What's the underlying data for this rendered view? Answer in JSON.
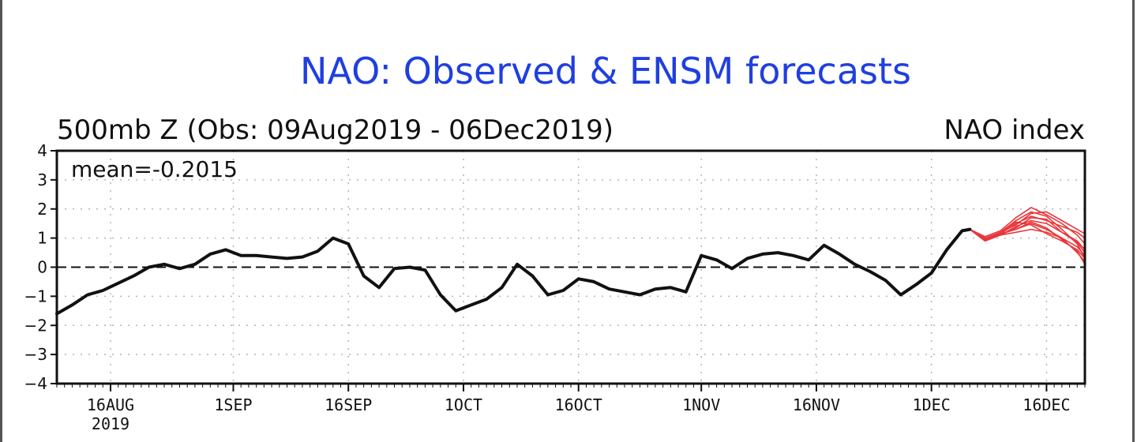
{
  "chart_data": {
    "type": "line",
    "title": "NAO: Observed & ENSM forecasts",
    "subtitle_left": "500mb Z (Obs: 09Aug2019 - 06Dec2019)",
    "subtitle_right": "NAO index",
    "annotation": "mean=-0.2015",
    "ylim": [
      -4,
      4
    ],
    "yticks": [
      "4",
      "3",
      "2",
      "1",
      "0",
      "−1",
      "−2",
      "−3",
      "−4"
    ],
    "xlim": [
      "2019-08-09",
      "2019-12-21"
    ],
    "xticks": [
      {
        "label": "16AUG",
        "sub": "2019",
        "date": "2019-08-16"
      },
      {
        "label": "1SEP",
        "sub": "",
        "date": "2019-09-01"
      },
      {
        "label": "16SEP",
        "sub": "",
        "date": "2019-09-16"
      },
      {
        "label": "1OCT",
        "sub": "",
        "date": "2019-10-01"
      },
      {
        "label": "16OCT",
        "sub": "",
        "date": "2019-10-16"
      },
      {
        "label": "1NOV",
        "sub": "",
        "date": "2019-11-01"
      },
      {
        "label": "16NOV",
        "sub": "",
        "date": "2019-11-16"
      },
      {
        "label": "1DEC",
        "sub": "",
        "date": "2019-12-01"
      },
      {
        "label": "16DEC",
        "sub": "",
        "date": "2019-12-16"
      }
    ],
    "grid": true,
    "zero_line": "dashed",
    "colors": {
      "observed": "#111111",
      "forecast": "#e8383c",
      "title": "#1f3fe0"
    },
    "observed": {
      "x": [
        "2019-08-09",
        "2019-08-11",
        "2019-08-13",
        "2019-08-15",
        "2019-08-17",
        "2019-08-19",
        "2019-08-21",
        "2019-08-23",
        "2019-08-25",
        "2019-08-27",
        "2019-08-29",
        "2019-08-31",
        "2019-09-02",
        "2019-09-04",
        "2019-09-06",
        "2019-09-08",
        "2019-09-10",
        "2019-09-12",
        "2019-09-14",
        "2019-09-16",
        "2019-09-18",
        "2019-09-20",
        "2019-09-22",
        "2019-09-24",
        "2019-09-26",
        "2019-09-28",
        "2019-09-30",
        "2019-10-02",
        "2019-10-04",
        "2019-10-06",
        "2019-10-08",
        "2019-10-10",
        "2019-10-12",
        "2019-10-14",
        "2019-10-16",
        "2019-10-18",
        "2019-10-20",
        "2019-10-22",
        "2019-10-24",
        "2019-10-26",
        "2019-10-28",
        "2019-10-30",
        "2019-11-01",
        "2019-11-03",
        "2019-11-05",
        "2019-11-07",
        "2019-11-09",
        "2019-11-11",
        "2019-11-13",
        "2019-11-15",
        "2019-11-17",
        "2019-11-19",
        "2019-11-21",
        "2019-11-23",
        "2019-11-25",
        "2019-11-27",
        "2019-11-29",
        "2019-12-01",
        "2019-12-03",
        "2019-12-05",
        "2019-12-06"
      ],
      "y": [
        -1.6,
        -1.3,
        -0.95,
        -0.8,
        -0.55,
        -0.3,
        0.0,
        0.1,
        -0.05,
        0.1,
        0.45,
        0.6,
        0.4,
        0.4,
        0.35,
        0.3,
        0.35,
        0.55,
        1.0,
        0.8,
        -0.3,
        -0.7,
        -0.05,
        0.0,
        -0.1,
        -0.95,
        -1.5,
        -1.3,
        -1.1,
        -0.7,
        0.1,
        -0.3,
        -0.95,
        -0.8,
        -0.4,
        -0.5,
        -0.75,
        -0.85,
        -0.95,
        -0.75,
        -0.7,
        -0.85,
        0.4,
        0.25,
        -0.05,
        0.3,
        0.45,
        0.5,
        0.4,
        0.25,
        0.75,
        0.45,
        0.1,
        -0.15,
        -0.45,
        -0.95,
        -0.6,
        -0.2,
        0.6,
        1.25,
        1.3
      ]
    },
    "forecast": {
      "x": [
        "2019-12-06",
        "2019-12-08",
        "2019-12-10",
        "2019-12-12",
        "2019-12-14",
        "2019-12-16",
        "2019-12-18",
        "2019-12-20",
        "2019-12-21"
      ],
      "members": [
        [
          1.3,
          0.9,
          1.15,
          1.3,
          1.5,
          1.3,
          1.0,
          0.5,
          0.2
        ],
        [
          1.3,
          1.0,
          1.2,
          1.6,
          1.9,
          1.75,
          1.3,
          0.8,
          0.3
        ],
        [
          1.3,
          0.95,
          1.1,
          1.4,
          1.6,
          1.5,
          1.2,
          0.9,
          0.6
        ],
        [
          1.3,
          1.05,
          1.25,
          1.7,
          2.05,
          1.8,
          1.5,
          1.1,
          0.8
        ],
        [
          1.3,
          0.9,
          1.1,
          1.2,
          1.3,
          1.2,
          1.0,
          0.7,
          0.4
        ],
        [
          1.3,
          1.0,
          1.15,
          1.5,
          1.75,
          1.6,
          1.4,
          1.2,
          1.0
        ],
        [
          1.3,
          0.95,
          1.2,
          1.55,
          1.45,
          1.15,
          0.9,
          0.6,
          0.3
        ],
        [
          1.3,
          1.0,
          1.1,
          1.35,
          1.7,
          1.65,
          1.2,
          0.85,
          0.5
        ],
        [
          1.3,
          0.95,
          1.2,
          1.45,
          1.85,
          1.9,
          1.6,
          1.3,
          1.15
        ],
        [
          1.3,
          1.0,
          1.15,
          1.3,
          1.55,
          1.35,
          0.95,
          0.55,
          0.1
        ]
      ]
    }
  }
}
